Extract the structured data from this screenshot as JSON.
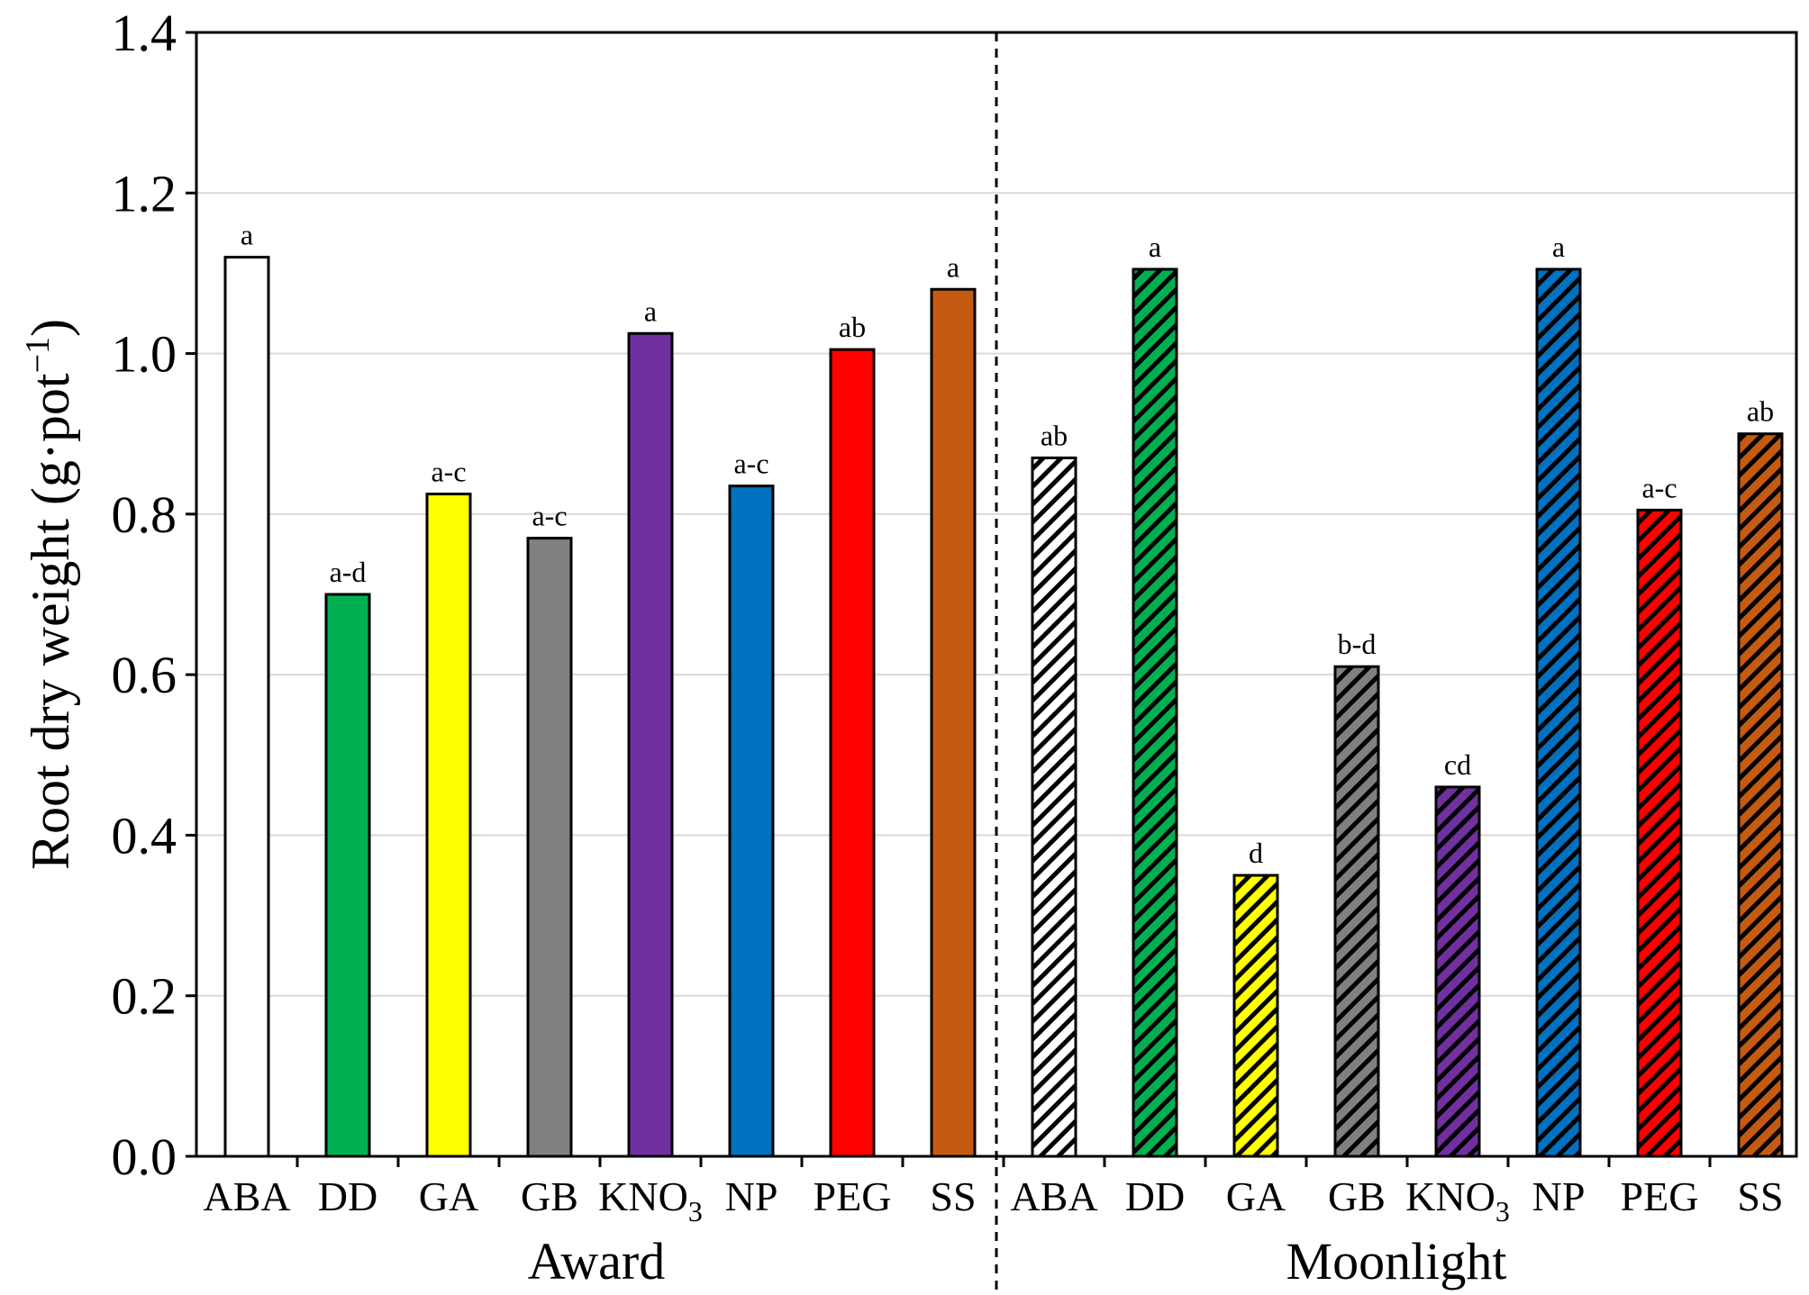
{
  "chart_data": {
    "type": "bar",
    "ylabel": "Root dry weight (g·pot⁻¹)",
    "ylabel_parts": {
      "main": "Root dry weight (g·pot",
      "sup": "−1",
      "end": ")"
    },
    "ylim": [
      0,
      1.4
    ],
    "yticks": [
      "0.0",
      "0.2",
      "0.4",
      "0.6",
      "0.8",
      "1.0",
      "1.2",
      "1.4"
    ],
    "yticks_values": [
      0,
      0.2,
      0.4,
      0.6,
      0.8,
      1.0,
      1.2,
      1.4
    ],
    "grid": "horizontal",
    "groups": [
      {
        "name": "Award",
        "pattern": "solid",
        "categories": [
          "ABA",
          "DD",
          "GA",
          "GB",
          "KNO3",
          "NP",
          "PEG",
          "SS"
        ],
        "values": [
          1.12,
          0.7,
          0.825,
          0.77,
          1.025,
          0.835,
          1.005,
          1.08
        ],
        "letters": [
          "a",
          "a-d",
          "a-c",
          "a-c",
          "a",
          "a-c",
          "ab",
          "a"
        ]
      },
      {
        "name": "Moonlight",
        "pattern": "hatched",
        "categories": [
          "ABA",
          "DD",
          "GA",
          "GB",
          "KNO3",
          "NP",
          "PEG",
          "SS"
        ],
        "values": [
          0.87,
          1.105,
          0.35,
          0.61,
          0.46,
          1.105,
          0.805,
          0.9
        ],
        "letters": [
          "ab",
          "a",
          "d",
          "b-d",
          "cd",
          "a",
          "a-c",
          "ab"
        ]
      }
    ],
    "colors": {
      "ABA": "#ffffff",
      "DD": "#00b050",
      "GA": "#ffff00",
      "GB": "#808080",
      "KNO3": "#7030a0",
      "NP": "#0070c0",
      "PEG": "#ff0000",
      "SS": "#c55a11"
    }
  }
}
